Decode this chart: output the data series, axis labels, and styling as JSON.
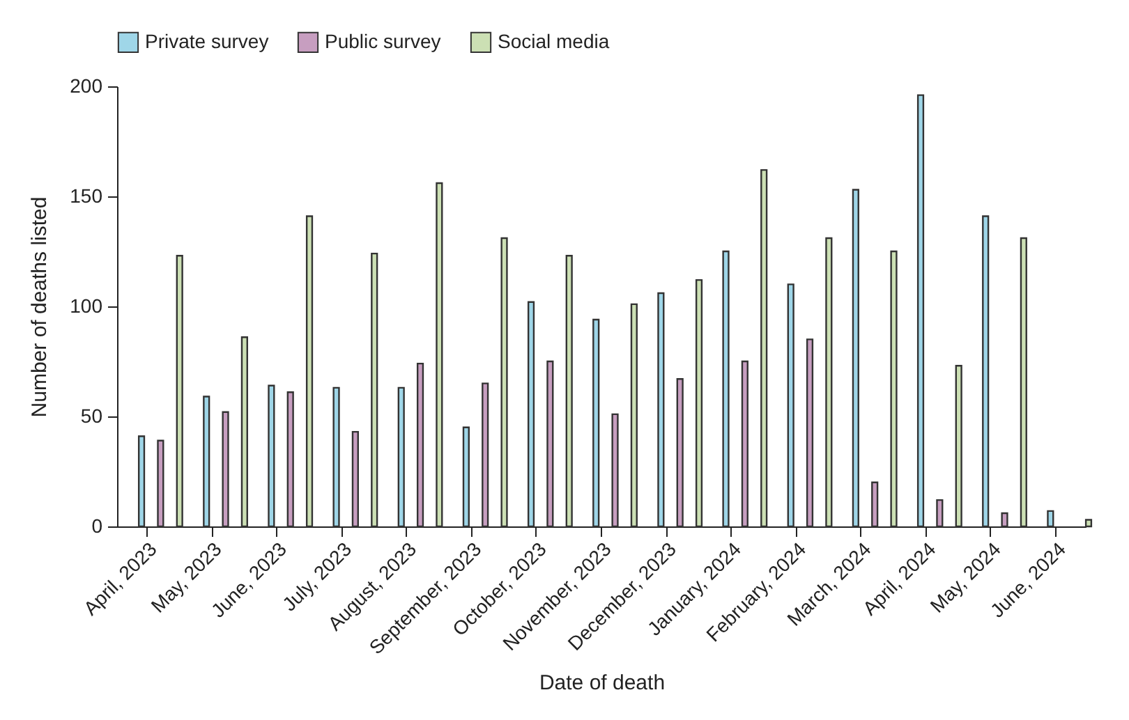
{
  "chart_data": {
    "type": "bar",
    "xlabel": "Date of death",
    "ylabel": "Number of deaths listed",
    "categories": [
      "April, 2023",
      "May, 2023",
      "June, 2023",
      "July, 2023",
      "August, 2023",
      "September, 2023",
      "October, 2023",
      "November, 2023",
      "December, 2023",
      "January, 2024",
      "February, 2024",
      "March, 2024",
      "April, 2024",
      "May, 2024",
      "June, 2024"
    ],
    "series": [
      {
        "name": "Private survey",
        "color": "#9fd6e8",
        "values": [
          41,
          59,
          64,
          63,
          63,
          45,
          102,
          94,
          106,
          125,
          110,
          153,
          196,
          141,
          7
        ]
      },
      {
        "name": "Public survey",
        "color": "#c79ec0",
        "values": [
          39,
          52,
          61,
          43,
          74,
          65,
          75,
          51,
          67,
          75,
          85,
          20,
          12,
          6,
          null
        ]
      },
      {
        "name": "Social media",
        "color": "#cce0b4",
        "values": [
          123,
          86,
          141,
          124,
          156,
          131,
          123,
          101,
          112,
          162,
          131,
          125,
          73,
          131,
          3
        ]
      }
    ],
    "ylim": [
      0,
      200
    ],
    "yticks": [
      0,
      50,
      100,
      150,
      200
    ],
    "grid": false,
    "legend": "top left"
  }
}
